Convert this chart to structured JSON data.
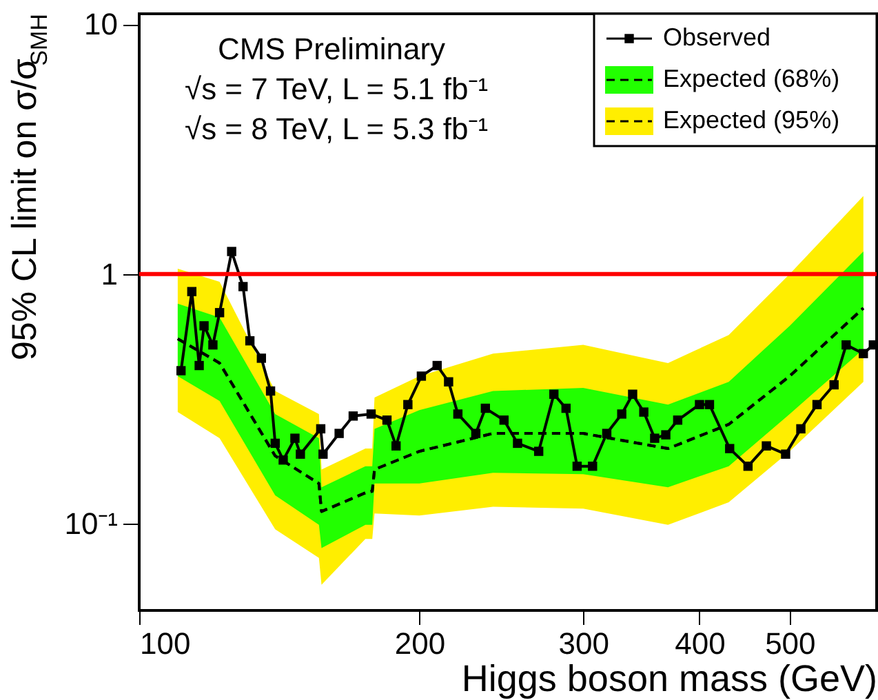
{
  "chart_data": {
    "type": "line",
    "xlabel": "Higgs boson mass (GeV)",
    "ylabel": "95% CL limit on σ/σ$_{SMH}$",
    "annotations": [
      "CMS Preliminary",
      "√s = 7 TeV, L = 5.1 fb⁻¹",
      "√s = 8 TeV, L = 5.3 fb⁻¹"
    ],
    "log": "xy",
    "grid": false,
    "legend": "top right",
    "xlim": [
      100,
      620
    ],
    "xticks": [
      100,
      200,
      300,
      400,
      500
    ],
    "ylim": [
      0.045,
      11
    ],
    "yticks": [
      {
        "value": 0.1,
        "label": "10⁻¹"
      },
      1,
      10
    ],
    "ref_lines": [
      {
        "axis": "y",
        "value": 1,
        "color": "#ff0000"
      }
    ],
    "series": [
      {
        "name": "Observed",
        "line_style": "solid",
        "marker": "square",
        "color": "#000000",
        "x": [
          110.9,
          113.9,
          116,
          117.4,
          120,
          122,
          125.7,
          129.3,
          131.5,
          135.3,
          138.4,
          140,
          142.8,
          147,
          149,
          156.7,
          157.6,
          164,
          169.8,
          177.5,
          184.6,
          188.8,
          194.4,
          201,
          209,
          215,
          220,
          230,
          235.5,
          246.6,
          255,
          268.7,
          279,
          287.5,
          295.5,
          307,
          318,
          330,
          339,
          348.5,
          358,
          368,
          379,
          400,
          410,
          431,
          451,
          472,
          495,
          514,
          535,
          558,
          575,
          600,
          615
        ],
        "values": [
          0.41,
          0.85,
          0.43,
          0.62,
          0.52,
          0.7,
          1.23,
          0.89,
          0.54,
          0.46,
          0.34,
          0.21,
          0.18,
          0.22,
          0.19,
          0.24,
          0.19,
          0.23,
          0.27,
          0.275,
          0.26,
          0.205,
          0.3,
          0.39,
          0.43,
          0.37,
          0.275,
          0.23,
          0.29,
          0.26,
          0.21,
          0.195,
          0.33,
          0.29,
          0.17,
          0.17,
          0.23,
          0.275,
          0.33,
          0.28,
          0.22,
          0.227,
          0.26,
          0.3,
          0.3,
          0.2,
          0.17,
          0.205,
          0.19,
          0.24,
          0.3,
          0.36,
          0.52,
          0.48,
          0.52
        ]
      },
      {
        "name": "Expected (68%)",
        "line_style": "dashed",
        "marker": "none",
        "color": "#000000",
        "colors": [
          "#22ff00",
          "#22ff00",
          "#22ff00",
          "#22ff00",
          "#22ff00",
          "#22ff00",
          "#22ff00",
          "#22ff00",
          "#22ff00",
          "#22ff00",
          "#22ff00",
          "#22ff00",
          "#22ff00",
          "#22ff00",
          "#22ff00"
        ],
        "x": [
          110,
          122,
          140,
          156,
          157,
          175,
          178,
          179,
          200,
          240,
          300,
          370,
          430,
          500,
          600
        ],
        "values": [
          0.55,
          0.44,
          0.187,
          0.145,
          0.112,
          0.133,
          0.135,
          0.165,
          0.195,
          0.23,
          0.23,
          0.2,
          0.25,
          0.39,
          0.73
        ],
        "lower": [
          0.39,
          0.31,
          0.13,
          0.099,
          0.08,
          0.099,
          0.099,
          0.145,
          0.145,
          0.16,
          0.158,
          0.14,
          0.17,
          0.275,
          0.5
        ],
        "upper": [
          0.76,
          0.67,
          0.275,
          0.22,
          0.14,
          0.17,
          0.17,
          0.24,
          0.285,
          0.34,
          0.35,
          0.3,
          0.37,
          0.62,
          1.23
        ]
      },
      {
        "name": "Expected (95%)",
        "line_style": "dashed",
        "marker": "none",
        "color": "#000000",
        "colors": [
          "#ffee00",
          "#ffee00",
          "#ffee00",
          "#ffee00",
          "#ffee00",
          "#ffee00",
          "#ffee00",
          "#ffee00",
          "#ffee00",
          "#ffee00",
          "#ffee00",
          "#ffee00",
          "#ffee00",
          "#ffee00",
          "#ffee00"
        ],
        "x": [
          110,
          122,
          140,
          156,
          157,
          175,
          178,
          179,
          200,
          240,
          300,
          370,
          430,
          500,
          600
        ],
        "values": [
          0.55,
          0.44,
          0.187,
          0.145,
          0.112,
          0.133,
          0.135,
          0.165,
          0.195,
          0.23,
          0.23,
          0.2,
          0.25,
          0.39,
          0.73
        ],
        "lower": [
          0.28,
          0.22,
          0.095,
          0.073,
          0.057,
          0.087,
          0.087,
          0.11,
          0.108,
          0.117,
          0.115,
          0.099,
          0.122,
          0.195,
          0.37
        ],
        "upper": [
          1.05,
          0.93,
          0.34,
          0.275,
          0.165,
          0.2,
          0.2,
          0.32,
          0.39,
          0.48,
          0.52,
          0.44,
          0.57,
          1.0,
          2.05
        ]
      }
    ]
  }
}
